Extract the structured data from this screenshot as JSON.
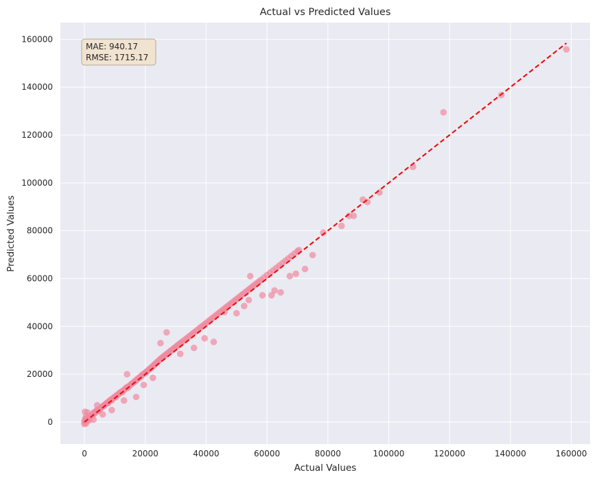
{
  "chart_data": {
    "type": "scatter",
    "title": "Actual vs Predicted Values",
    "xlabel": "Actual Values",
    "ylabel": "Predicted Values",
    "xlim": [
      -7900,
      166200
    ],
    "ylim": [
      -9200,
      167000
    ],
    "xticks": [
      0,
      20000,
      40000,
      60000,
      80000,
      100000,
      120000,
      140000,
      160000
    ],
    "yticks": [
      0,
      20000,
      40000,
      60000,
      80000,
      100000,
      120000,
      140000,
      160000
    ],
    "grid": true,
    "stats_box": {
      "lines": [
        "MAE: 940.17",
        "RMSE: 1715.17"
      ],
      "placement": "top-left"
    },
    "colors": {
      "points": "#f08aa0",
      "reference_line": "#ee1111",
      "plot_background": "#eaeaf2",
      "grid": "#ffffff",
      "stats_box_fill": "#f0e3cf",
      "stats_box_border": "#b3a998"
    },
    "reference_line": {
      "style": "dashed",
      "from": [
        0,
        0
      ],
      "to": [
        158400,
        158400
      ]
    },
    "series": [
      {
        "x": [
          0,
          0,
          200,
          300,
          500,
          500,
          800,
          1000,
          1200,
          1500,
          1800,
          2000,
          2200,
          2500,
          2800,
          3000,
          3300,
          3500,
          3800,
          4000,
          4300,
          4600,
          5000,
          5300,
          5600,
          6000,
          6300,
          6500,
          6800,
          7200,
          7500,
          7800,
          8000,
          8300,
          8600,
          9000,
          9300,
          9700,
          10000,
          10300,
          10600,
          11000,
          11300,
          11600,
          12000,
          12300,
          12700,
          13000,
          13400,
          13700,
          14000,
          14300,
          14700,
          15000,
          15300,
          15600,
          16000,
          16300,
          16700,
          17000,
          17300,
          17700,
          18000,
          18400,
          18700,
          19000,
          19400,
          19800,
          20200,
          20500,
          20900,
          21200,
          21600,
          22000,
          22300,
          22700,
          23000,
          23300,
          23700,
          24000,
          24400,
          24700,
          25000,
          25400,
          25800,
          26200,
          26600,
          27000,
          27400,
          27800,
          28200,
          28600,
          29000,
          29400,
          29800,
          30200,
          30600,
          31000,
          31400,
          31800,
          32200,
          32800,
          33400,
          34000,
          34600,
          35200,
          35800,
          36400,
          37000,
          37600,
          38200,
          38800,
          39400,
          40000,
          40600,
          41200,
          41800,
          42400,
          43000,
          43600,
          44200,
          44800,
          45400,
          46000,
          46600,
          47200,
          47800,
          48400,
          49000,
          49600,
          50200,
          50800,
          51400,
          52000,
          52600,
          53200,
          53800,
          54400,
          55000,
          55600,
          56200,
          56800,
          57400,
          58000,
          59000,
          60000,
          61000,
          62000,
          63000,
          64000,
          65000,
          66000,
          67000,
          68000,
          69000,
          70000,
          70500,
          4200,
          1000,
          200,
          14000,
          17000,
          19500,
          22500,
          27000,
          25000,
          31500,
          36000,
          42500,
          39500,
          46000,
          50000,
          52500,
          54000,
          54500,
          58500,
          61500,
          62500,
          64500,
          67500,
          69500,
          72500,
          75000,
          78500,
          84500,
          87000,
          88500,
          91500,
          93000,
          97000,
          108000,
          118000,
          137000,
          158400,
          13000,
          9000,
          6000,
          3000,
          1600,
          500
        ],
        "y": [
          200,
          -800,
          800,
          1200,
          -600,
          400,
          1200,
          900,
          1800,
          1500,
          2200,
          2700,
          2500,
          2900,
          3300,
          3900,
          3600,
          4200,
          4600,
          4300,
          5200,
          4800,
          5400,
          5800,
          6100,
          6500,
          6700,
          7100,
          7300,
          7800,
          8100,
          7900,
          8600,
          8900,
          9300,
          9100,
          9900,
          10200,
          10600,
          10400,
          11200,
          11500,
          11800,
          12200,
          12600,
          12400,
          13100,
          13400,
          13900,
          14200,
          14600,
          14300,
          15000,
          15400,
          15700,
          16100,
          16400,
          16800,
          17100,
          17500,
          17900,
          18200,
          18600,
          18900,
          19300,
          19700,
          20100,
          20400,
          20800,
          21200,
          21600,
          22000,
          22400,
          22800,
          23200,
          23600,
          24000,
          24400,
          24800,
          25200,
          25600,
          26000,
          26400,
          26800,
          27200,
          27600,
          28000,
          28400,
          28800,
          29200,
          29600,
          30000,
          30400,
          30800,
          31200,
          31600,
          32000,
          32400,
          32800,
          33200,
          33600,
          34200,
          34800,
          35400,
          36000,
          36600,
          37200,
          37800,
          38400,
          39000,
          39600,
          40200,
          40800,
          41400,
          42000,
          42600,
          43200,
          43800,
          44400,
          45000,
          45600,
          46200,
          46800,
          47400,
          48000,
          48600,
          49200,
          49800,
          50400,
          51000,
          51600,
          52200,
          52800,
          53400,
          54000,
          54600,
          55200,
          55800,
          56400,
          57000,
          57600,
          58200,
          58800,
          59400,
          60400,
          61400,
          62400,
          63400,
          64400,
          65400,
          66400,
          67400,
          68400,
          69400,
          70400,
          71400,
          71900,
          7000,
          4000,
          4300,
          20000,
          10500,
          15500,
          18500,
          37500,
          33000,
          28500,
          31000,
          33500,
          35000,
          46000,
          45500,
          48500,
          51000,
          61000,
          53000,
          53000,
          55000,
          54200,
          61000,
          62000,
          64000,
          69800,
          79200,
          82000,
          86200,
          86200,
          93000,
          92000,
          96000,
          106700,
          129500,
          136700,
          155800,
          9000,
          5000,
          3200,
          1000,
          700,
          2300
        ]
      }
    ]
  }
}
